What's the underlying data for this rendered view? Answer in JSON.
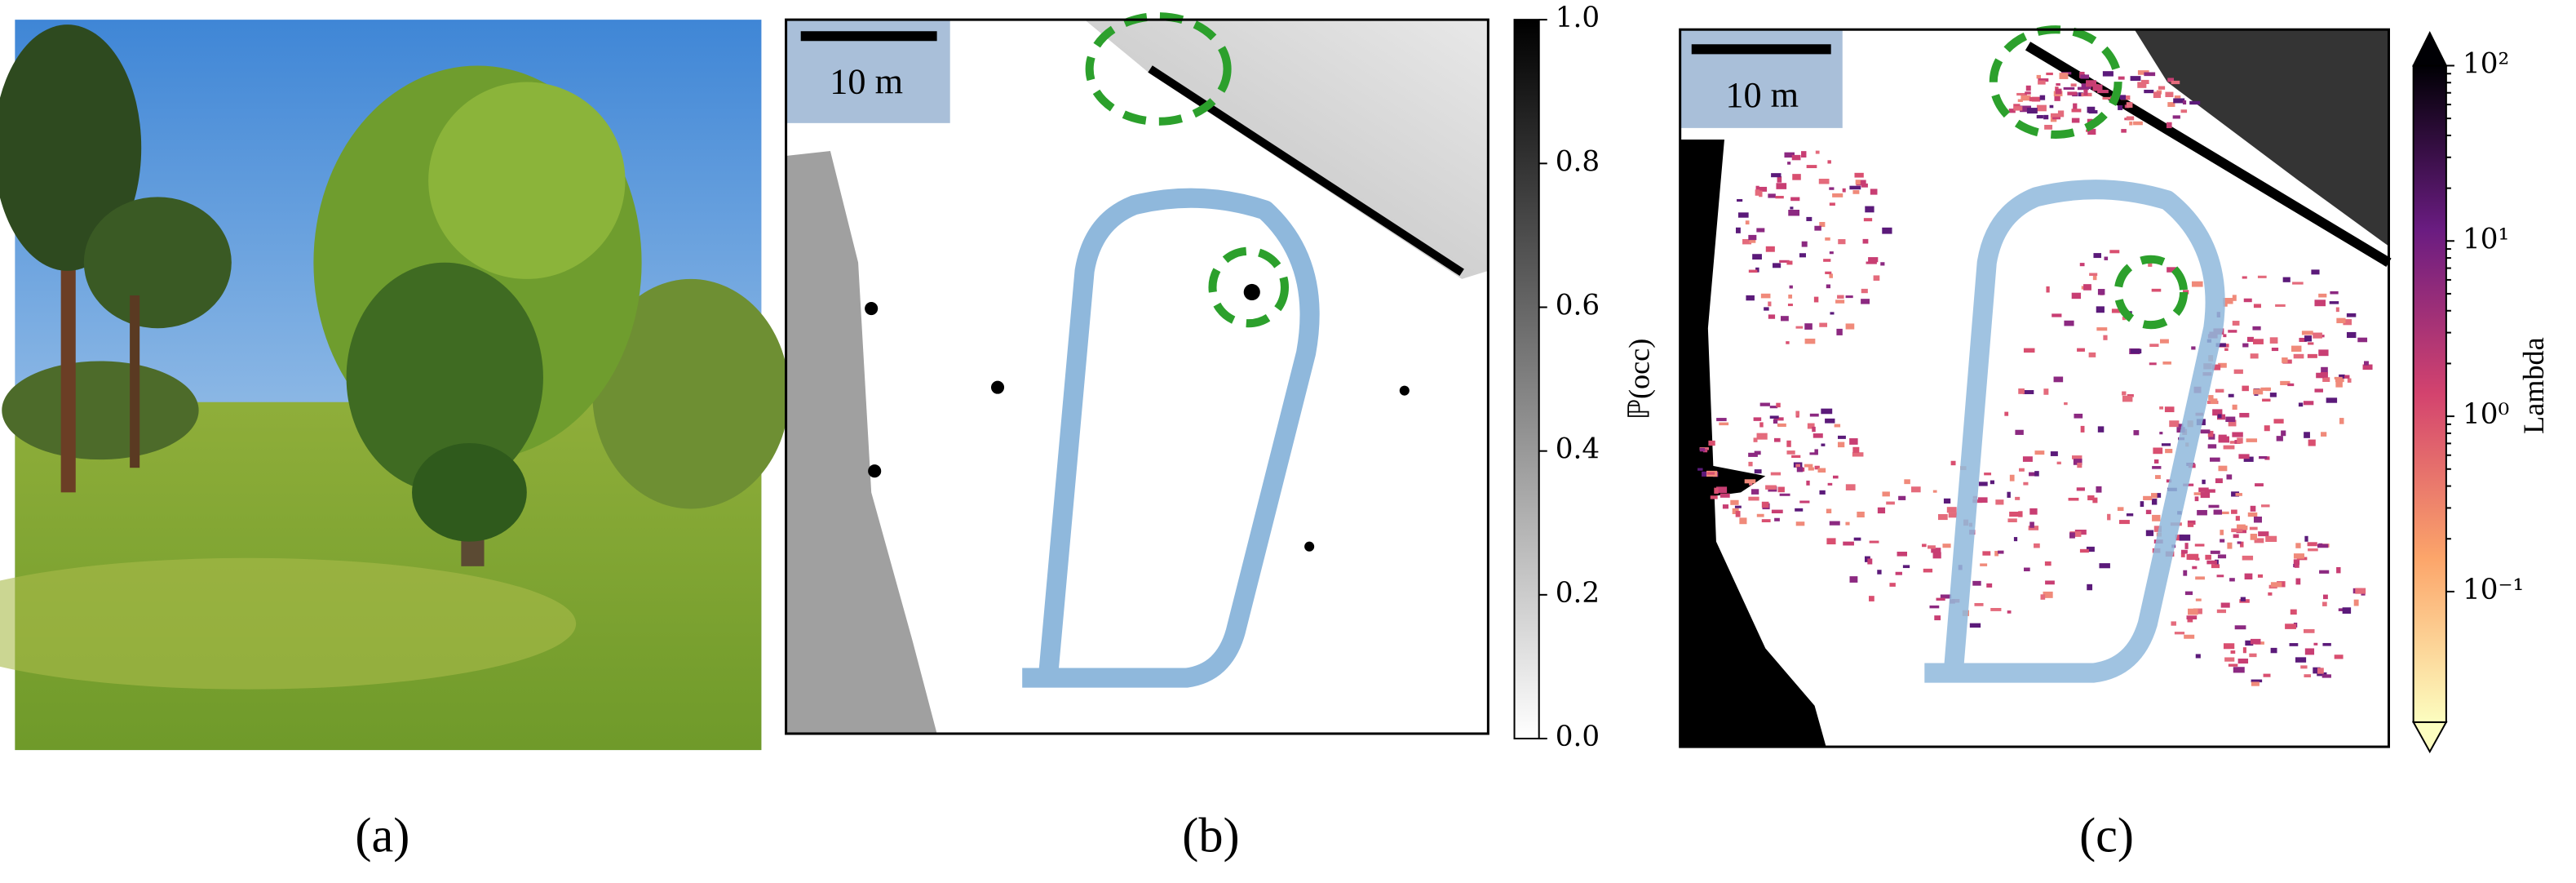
{
  "panels": [
    {
      "caption": "(a)"
    },
    {
      "caption": "(b)",
      "scale_bar": "10 m",
      "colorbar": {
        "label": "ℙ(occ)",
        "lim": [
          0,
          1
        ],
        "ticks": [
          {
            "value": 0,
            "label": "0.0"
          },
          {
            "value": 0.2,
            "label": "0.2"
          },
          {
            "value": 0.4,
            "label": "0.4"
          },
          {
            "value": 0.6,
            "label": "0.6"
          },
          {
            "value": 0.8,
            "label": "0.8"
          },
          {
            "value": 1,
            "label": "1.0"
          }
        ]
      }
    },
    {
      "caption": "(c)",
      "scale_bar": "10 m",
      "colorbar": {
        "label": "Lambda",
        "log": true,
        "lim": [
          0.018,
          100
        ],
        "ticks": [
          {
            "value": 0.1,
            "label": "10⁻¹"
          },
          {
            "value": 1,
            "label": "10⁰"
          },
          {
            "value": 10,
            "label": "10¹"
          },
          {
            "value": 100,
            "label": "10²"
          }
        ]
      }
    }
  ]
}
